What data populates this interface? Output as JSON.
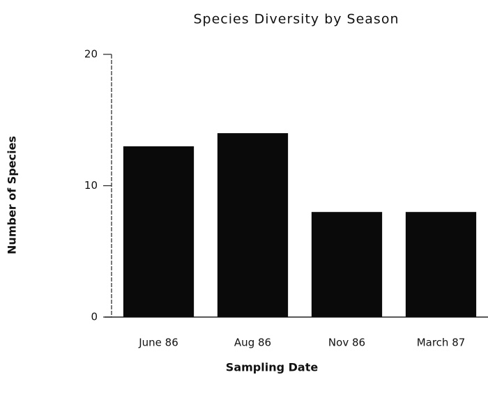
{
  "chart_data": {
    "type": "bar",
    "title": "Species Diversity by Season",
    "x_label": "Sampling Date",
    "y_label": "Number of Species",
    "categories": [
      "June 86",
      "Aug 86",
      "Nov 86",
      "March 87"
    ],
    "values": [
      13,
      14,
      8,
      8
    ],
    "color": "#0a0a0a",
    "ylim": [
      0,
      20
    ],
    "yticks": [
      0,
      10,
      20
    ],
    "grid": false
  }
}
